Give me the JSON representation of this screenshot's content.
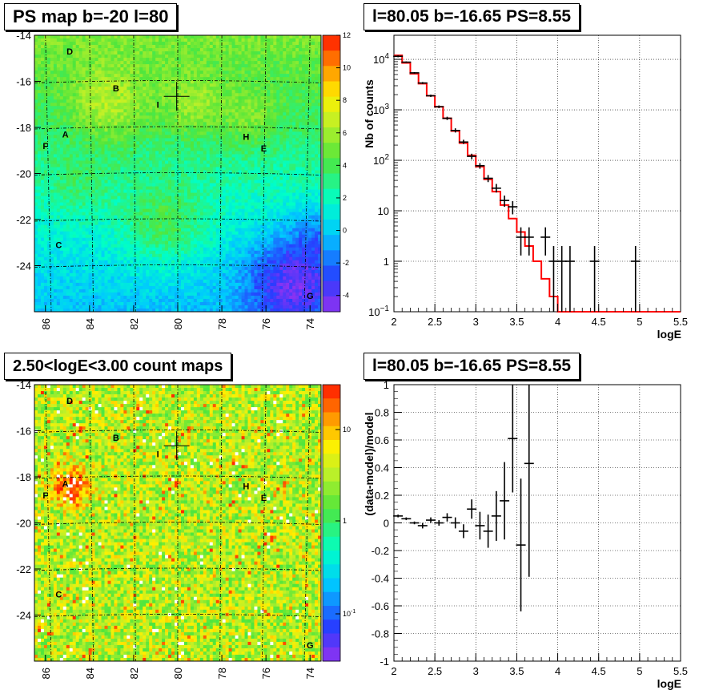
{
  "panels": {
    "tl": {
      "title": "PS map b=-20 l=80",
      "yticks": [
        "-14",
        "-16",
        "-18",
        "-20",
        "-22",
        "-24"
      ],
      "xticks": [
        "86",
        "84",
        "82",
        "80",
        "78",
        "76",
        "74"
      ],
      "colorbar_ticks": [
        "12",
        "10",
        "8",
        "6",
        "4",
        "2",
        "0",
        "-2",
        "-4"
      ],
      "sources": [
        {
          "label": "D"
        },
        {
          "label": "B"
        },
        {
          "label": "I"
        },
        {
          "label": "A"
        },
        {
          "label": "F"
        },
        {
          "label": "H"
        },
        {
          "label": "E"
        },
        {
          "label": "C"
        },
        {
          "label": "G"
        }
      ]
    },
    "tr": {
      "title": "l=80.05 b=-16.65 PS=8.55",
      "ylabel": "Nb of counts",
      "xlabel": "logE",
      "xticks": [
        "2",
        "2.5",
        "3",
        "3.5",
        "4",
        "4.5",
        "5",
        "5.5"
      ],
      "yticks": [
        {
          "base": "10",
          "exp": "4"
        },
        {
          "base": "10",
          "exp": "3"
        },
        {
          "base": "10",
          "exp": "2"
        },
        {
          "base": "10",
          "exp": ""
        },
        {
          "base": "1",
          "exp": ""
        },
        {
          "base": "10",
          "exp": "−1"
        }
      ]
    },
    "bl": {
      "title": "2.50<logE<3.00 count maps",
      "yticks": [
        "-14",
        "-16",
        "-18",
        "-20",
        "-22",
        "-24"
      ],
      "xticks": [
        "86",
        "84",
        "82",
        "80",
        "78",
        "76",
        "74"
      ],
      "colorbar_ticks": [
        {
          "base": "10",
          "exp": ""
        },
        {
          "base": "1",
          "exp": ""
        },
        {
          "base": "10",
          "exp": "-1"
        }
      ],
      "sources": [
        {
          "label": "D"
        },
        {
          "label": "B"
        },
        {
          "label": "I"
        },
        {
          "label": "A"
        },
        {
          "label": "F"
        },
        {
          "label": "H"
        },
        {
          "label": "E"
        },
        {
          "label": "C"
        },
        {
          "label": "G"
        }
      ]
    },
    "br": {
      "title": "l=80.05 b=-16.65 PS=8.55",
      "ylabel": "(data-model)/model",
      "xlabel": "logE",
      "xticks": [
        "2",
        "2.5",
        "3",
        "3.5",
        "4",
        "4.5",
        "5",
        "5.5"
      ],
      "yticks": [
        "1",
        "0.8",
        "0.6",
        "0.4",
        "0.2",
        "0",
        "-0.2",
        "-0.4",
        "-0.6",
        "-0.8",
        "-1"
      ]
    }
  },
  "colors": {
    "model_line": "#ff0000",
    "data_points": "#000000",
    "grid": "#000000"
  },
  "chart_data": [
    {
      "type": "heatmap",
      "title": "PS map b=-20 l=80",
      "x_range": [
        86.5,
        73.5
      ],
      "y_range": [
        -14,
        -26
      ],
      "colorbar_range": [
        -5,
        12
      ],
      "sources": [
        {
          "label": "D",
          "l": 84.9,
          "b": -14.7
        },
        {
          "label": "B",
          "l": 82.8,
          "b": -16.3
        },
        {
          "label": "I",
          "l": 80.9,
          "b": -17.0
        },
        {
          "label": "A",
          "l": 85.1,
          "b": -18.3
        },
        {
          "label": "F",
          "l": 86.0,
          "b": -18.8
        },
        {
          "label": "H",
          "l": 76.9,
          "b": -18.4
        },
        {
          "label": "E",
          "l": 76.1,
          "b": -18.9
        },
        {
          "label": "C",
          "l": 85.4,
          "b": -23.1
        },
        {
          "label": "G",
          "l": 74.0,
          "b": -25.3
        }
      ],
      "cross": {
        "l": 80.05,
        "b": -16.65
      }
    },
    {
      "type": "line",
      "title": "l=80.05 b=-16.65 PS=8.55",
      "xlabel": "logE",
      "ylabel": "Nb of counts",
      "xlim": [
        2,
        5.5
      ],
      "ylim": [
        0.1,
        30000
      ],
      "yscale": "log",
      "grid": true,
      "model_step": {
        "edges": [
          2.0,
          2.1,
          2.2,
          2.3,
          2.4,
          2.5,
          2.6,
          2.7,
          2.8,
          2.9,
          3.0,
          3.1,
          3.2,
          3.3,
          3.4,
          3.5,
          3.6,
          3.7,
          3.8,
          3.9,
          4.0,
          4.1,
          4.2,
          5.5
        ],
        "values": [
          12000,
          8500,
          5200,
          3300,
          1900,
          1150,
          680,
          380,
          220,
          125,
          75,
          42,
          24,
          13,
          7,
          3.8,
          2.0,
          1.0,
          0.45,
          0.2,
          0.1,
          0.1,
          0.1
        ]
      },
      "data_points": [
        {
          "x": 2.05,
          "y": 11500,
          "lo": 11000,
          "hi": 12000
        },
        {
          "x": 2.15,
          "y": 8800,
          "lo": 8500,
          "hi": 9100
        },
        {
          "x": 2.25,
          "y": 5400,
          "lo": 5200,
          "hi": 5600
        },
        {
          "x": 2.35,
          "y": 3400,
          "lo": 3250,
          "hi": 3550
        },
        {
          "x": 2.45,
          "y": 1900,
          "lo": 1800,
          "hi": 2000
        },
        {
          "x": 2.55,
          "y": 1150,
          "lo": 1080,
          "hi": 1220
        },
        {
          "x": 2.65,
          "y": 680,
          "lo": 630,
          "hi": 730
        },
        {
          "x": 2.75,
          "y": 390,
          "lo": 355,
          "hi": 430
        },
        {
          "x": 2.85,
          "y": 230,
          "lo": 210,
          "hi": 255
        },
        {
          "x": 2.95,
          "y": 120,
          "lo": 105,
          "hi": 135
        },
        {
          "x": 3.05,
          "y": 78,
          "lo": 68,
          "hi": 88
        },
        {
          "x": 3.15,
          "y": 44,
          "lo": 37,
          "hi": 51
        },
        {
          "x": 3.25,
          "y": 28,
          "lo": 23,
          "hi": 34
        },
        {
          "x": 3.35,
          "y": 16,
          "lo": 12,
          "hi": 20
        },
        {
          "x": 3.45,
          "y": 12,
          "lo": 8.5,
          "hi": 15.5
        },
        {
          "x": 3.55,
          "y": 3,
          "lo": 1.3,
          "hi": 4.7
        },
        {
          "x": 3.65,
          "y": 3,
          "lo": 1.3,
          "hi": 4.7
        },
        {
          "x": 3.85,
          "y": 3,
          "lo": 1.3,
          "hi": 4.7
        },
        {
          "x": 3.95,
          "y": 1,
          "lo": 0.1,
          "hi": 2
        },
        {
          "x": 4.05,
          "y": 1,
          "lo": 0.1,
          "hi": 2
        },
        {
          "x": 4.15,
          "y": 1,
          "lo": 0.1,
          "hi": 2
        },
        {
          "x": 4.45,
          "y": 1,
          "lo": 0.1,
          "hi": 2
        },
        {
          "x": 4.95,
          "y": 1,
          "lo": 0.1,
          "hi": 2
        }
      ]
    },
    {
      "type": "heatmap",
      "title": "2.50<logE<3.00 count maps",
      "x_range": [
        86.5,
        73.5
      ],
      "y_range": [
        -14,
        -26
      ],
      "colorbar_scale": "log",
      "colorbar_range": [
        0.05,
        30
      ]
    },
    {
      "type": "scatter",
      "title": "l=80.05 b=-16.65 PS=8.55",
      "xlabel": "logE",
      "ylabel": "(data-model)/model",
      "xlim": [
        2,
        5.5
      ],
      "ylim": [
        -1,
        1
      ],
      "grid": true,
      "points": [
        {
          "x": 2.05,
          "y": 0.05,
          "err": 0.01
        },
        {
          "x": 2.15,
          "y": 0.03,
          "err": 0.01
        },
        {
          "x": 2.25,
          "y": 0.0,
          "err": 0.01
        },
        {
          "x": 2.35,
          "y": -0.02,
          "err": 0.02
        },
        {
          "x": 2.45,
          "y": 0.02,
          "err": 0.02
        },
        {
          "x": 2.55,
          "y": 0.0,
          "err": 0.02
        },
        {
          "x": 2.65,
          "y": 0.04,
          "err": 0.03
        },
        {
          "x": 2.75,
          "y": 0.0,
          "err": 0.04
        },
        {
          "x": 2.85,
          "y": -0.06,
          "err": 0.05
        },
        {
          "x": 2.95,
          "y": 0.1,
          "err": 0.07
        },
        {
          "x": 3.05,
          "y": -0.02,
          "err": 0.1
        },
        {
          "x": 3.15,
          "y": -0.06,
          "err": 0.12
        },
        {
          "x": 3.25,
          "y": 0.05,
          "err": 0.18
        },
        {
          "x": 3.35,
          "y": 0.16,
          "err": 0.28
        },
        {
          "x": 3.45,
          "y": 0.61,
          "err": 0.39
        },
        {
          "x": 3.55,
          "y": -0.16,
          "err": 0.48
        },
        {
          "x": 3.65,
          "y": 0.43,
          "err": 0.82
        }
      ]
    }
  ]
}
